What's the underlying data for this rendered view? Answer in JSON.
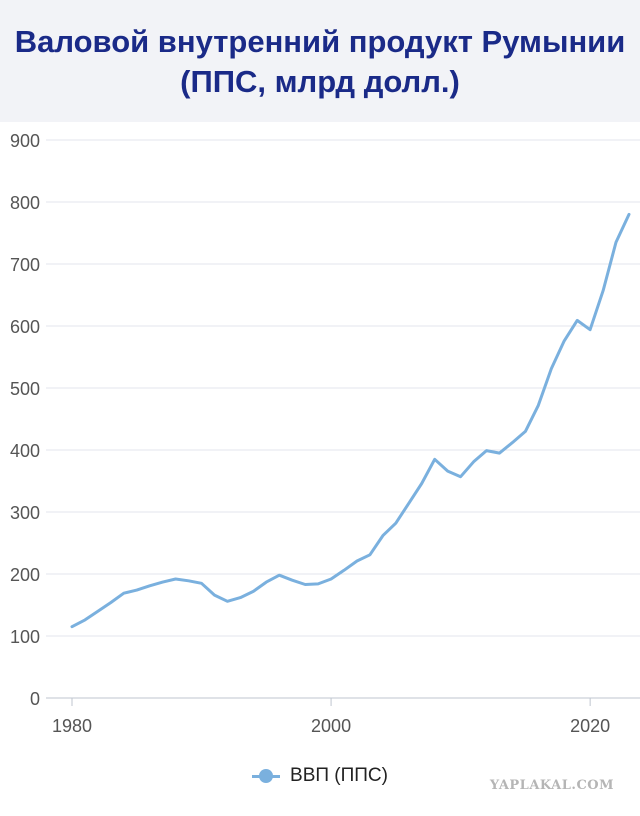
{
  "title_lines": [
    "Валовой внутренний продукт Румынии",
    "(ППС, млрд долл.)"
  ],
  "chart_data": {
    "type": "line",
    "title": "Валовой внутренний продукт Румынии (ППС, млрд долл.)",
    "xlabel": "",
    "ylabel": "",
    "xlim": [
      1980,
      2023
    ],
    "ylim": [
      0,
      900
    ],
    "x_ticks": [
      1980,
      2000,
      2020
    ],
    "y_ticks": [
      0,
      100,
      200,
      300,
      400,
      500,
      600,
      700,
      800,
      900
    ],
    "grid": "horizontal",
    "legend_position": "bottom",
    "series": [
      {
        "name": "ВВП (ППС)",
        "color": "#7ab0de",
        "x": [
          1980,
          1981,
          1982,
          1983,
          1984,
          1985,
          1986,
          1987,
          1988,
          1989,
          1990,
          1991,
          1992,
          1993,
          1994,
          1995,
          1996,
          1997,
          1998,
          1999,
          2000,
          2001,
          2002,
          2003,
          2004,
          2005,
          2006,
          2007,
          2008,
          2009,
          2010,
          2011,
          2012,
          2013,
          2014,
          2015,
          2016,
          2017,
          2018,
          2019,
          2020,
          2021,
          2022,
          2023
        ],
        "values": [
          115,
          126,
          140,
          154,
          169,
          174,
          181,
          187,
          192,
          189,
          185,
          166,
          156,
          162,
          172,
          187,
          198,
          190,
          183,
          184,
          192,
          206,
          221,
          231,
          262,
          282,
          314,
          346,
          385,
          366,
          357,
          381,
          399,
          395,
          412,
          430,
          472,
          531,
          576,
          609,
          594,
          657,
          735,
          780
        ]
      }
    ]
  },
  "legend": {
    "label": "ВВП (ППС)"
  },
  "watermark": "YAPLAKAL.COM"
}
